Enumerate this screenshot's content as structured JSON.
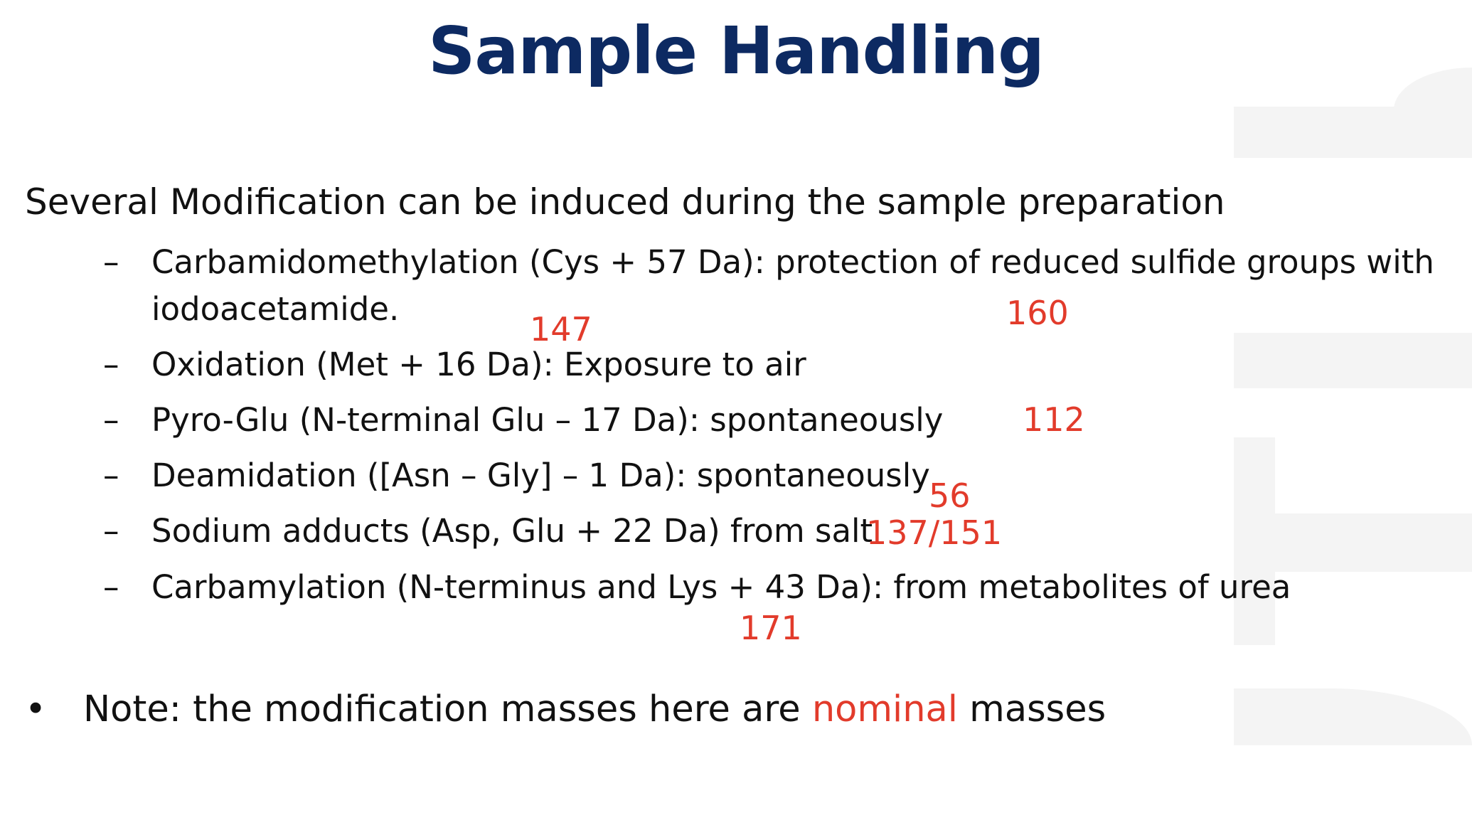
{
  "title": "Sample Handling",
  "intro": "Several Modification can be induced during the sample preparation",
  "items": [
    {
      "dash": "–",
      "line1": "Carbamidomethylation (Cys + 57 Da): protection of reduced sulfide groups with",
      "line2": "iodoacetamide."
    },
    {
      "dash": "–",
      "line1": "Oxidation (Met + 16 Da): Exposure to air"
    },
    {
      "dash": "–",
      "line1": "Pyro-Glu (N-terminal Glu – 17 Da): spontaneously"
    },
    {
      "dash": "–",
      "line1": "Deamidation ([Asn – Gly] – 1 Da): spontaneously"
    },
    {
      "dash": "–",
      "line1": "Sodium adducts (Asp, Glu + 22 Da) from salt"
    },
    {
      "dash": "–",
      "line1": "Carbamylation (N-terminus and Lys + 43 Da): from metabolites of urea"
    }
  ],
  "annotations": {
    "a147": "147",
    "a160": "160",
    "a112": "112",
    "a56": "56",
    "a137": "137/151",
    "a171": "171"
  },
  "note": {
    "bullet": "•",
    "before": "Note: the modification masses here are ",
    "highlight": "nominal",
    "after": " masses"
  },
  "colors": {
    "title": "#0d2a62",
    "annotation": "#e23b2b",
    "text": "#111111"
  }
}
